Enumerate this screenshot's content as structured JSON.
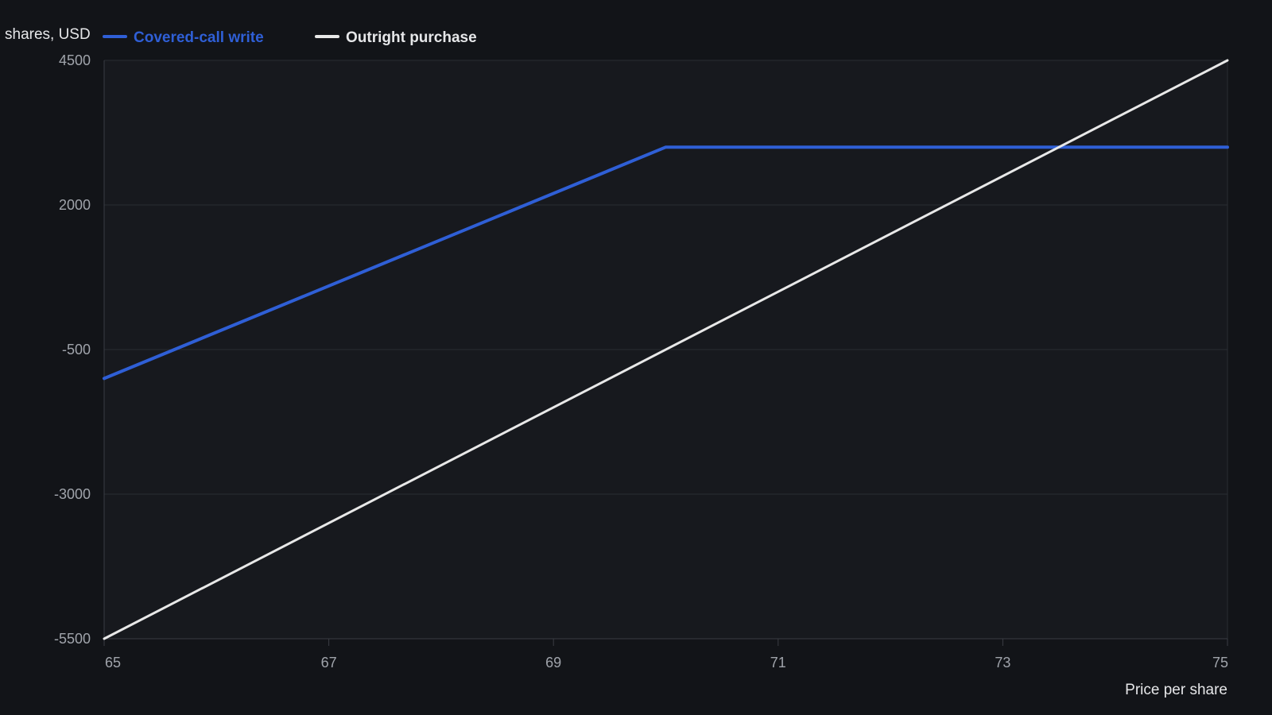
{
  "colors": {
    "background": "#121418",
    "plot_background": "#17191e",
    "grid": "#2a2d33",
    "axis": "#3a3d44",
    "tick_label": "#a0a4ab",
    "axis_label": "#e6e7e9",
    "covered_call": "#2f5fd6",
    "outright": "#e8e8e8"
  },
  "chart_data": {
    "type": "line",
    "title": "",
    "ylabel": "shares, USD",
    "xlabel": "Price per share",
    "xlim": [
      65,
      75
    ],
    "ylim": [
      -5500,
      4500
    ],
    "xticks": [
      65,
      67,
      69,
      71,
      73,
      75
    ],
    "yticks": [
      4500,
      2000,
      -500,
      -3000,
      -5500
    ],
    "grid": true,
    "legend_position": "top-left",
    "series": [
      {
        "name": "Covered-call write",
        "color": "#2f5fd6",
        "x": [
          65,
          70,
          75
        ],
        "y": [
          -1000,
          3000,
          3000
        ]
      },
      {
        "name": "Outright purchase",
        "color": "#e8e8e8",
        "x": [
          65,
          75
        ],
        "y": [
          -5500,
          4500
        ]
      }
    ]
  }
}
